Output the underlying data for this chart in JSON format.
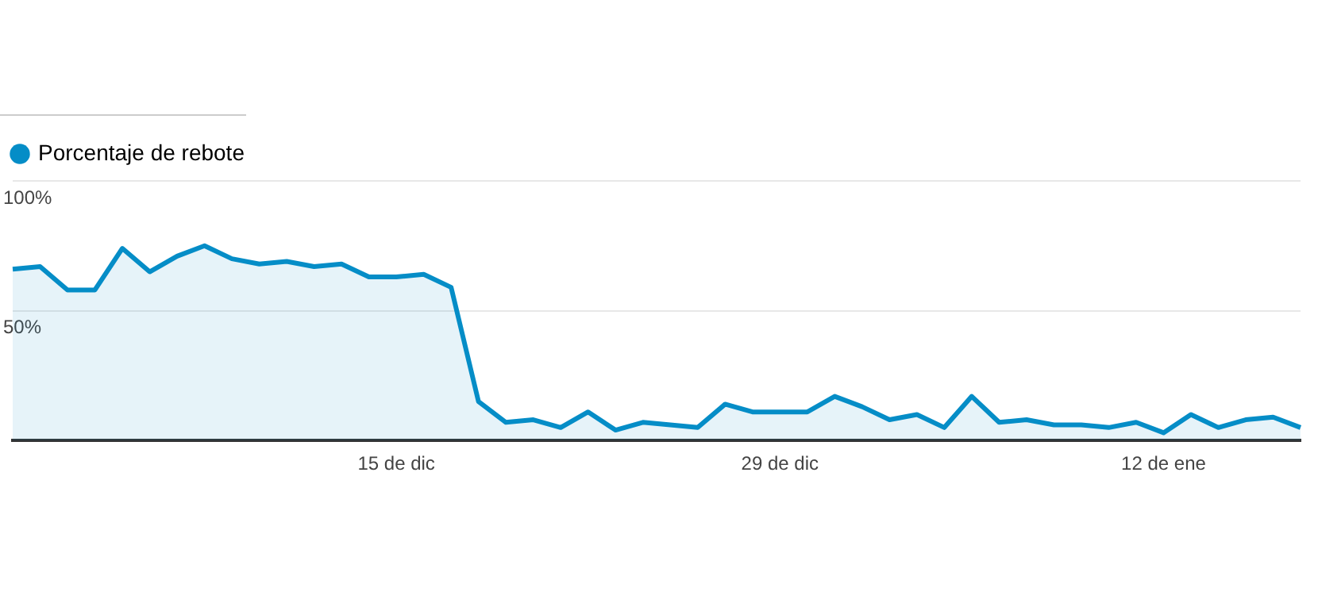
{
  "chart_data": {
    "type": "area",
    "categories": [
      null,
      null,
      null,
      null,
      null,
      null,
      null,
      null,
      null,
      null,
      null,
      null,
      null,
      null,
      "15 de dic",
      null,
      null,
      null,
      null,
      null,
      null,
      null,
      null,
      null,
      null,
      null,
      null,
      null,
      "29 de dic",
      null,
      null,
      null,
      null,
      null,
      null,
      null,
      null,
      null,
      null,
      null,
      null,
      null,
      "12 de ene",
      null,
      null,
      null,
      null,
      null
    ],
    "series": [
      {
        "name": "Porcentaje de rebote",
        "color": "#058dc7",
        "values": [
          66,
          67,
          58,
          58,
          74,
          65,
          71,
          75,
          70,
          68,
          69,
          67,
          68,
          63,
          63,
          64,
          59,
          15,
          7,
          8,
          5,
          11,
          4,
          7,
          6,
          5,
          14,
          11,
          11,
          11,
          17,
          13,
          8,
          10,
          5,
          17,
          7,
          8,
          6,
          6,
          5,
          7,
          3,
          10,
          5,
          8,
          9,
          5
        ]
      }
    ],
    "ylim": [
      0,
      100
    ],
    "yticks": [
      {
        "value": 0,
        "label": null
      },
      {
        "value": 50,
        "label": "50%"
      },
      {
        "value": 100,
        "label": "100%"
      }
    ],
    "grid": "y",
    "legend": "top left"
  }
}
